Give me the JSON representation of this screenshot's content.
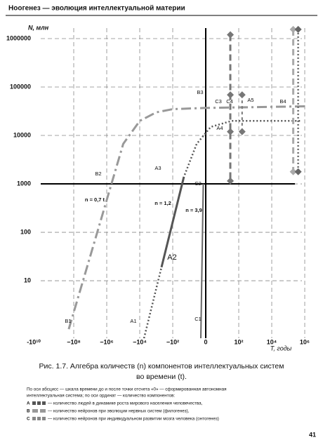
{
  "header": "Ноогенез — эволюция интеллектуальной материи",
  "chart_data": {
    "type": "line",
    "y_label": "N, млн",
    "x_label": "T,  годы",
    "xlim": [
      -10000000000,
      1800000
    ],
    "ylim": [
      0.65,
      1650000
    ],
    "log_y": true,
    "symlog_x": true,
    "grid": true,
    "xticks": [
      {
        "value": -10000000000,
        "label": "-10¹⁰"
      },
      {
        "value": -100000000,
        "label": "−10⁸"
      },
      {
        "value": -1000000,
        "label": "−10⁶"
      },
      {
        "value": -10000,
        "label": "−10⁴"
      },
      {
        "value": -100,
        "label": "−10²"
      },
      0,
      {
        "value": 100,
        "label": "10²"
      },
      {
        "value": 10000,
        "label": "10⁴"
      },
      {
        "value": 1000000,
        "label": "10⁶"
      }
    ],
    "yticks": [
      10,
      100,
      1000,
      10000,
      100000,
      1000000
    ],
    "series": [
      {
        "color": "#999",
        "dash": "14 5 3 5",
        "width": 3,
        "x": [
          -200000000,
          -10000000,
          -1000000,
          -300000,
          -100000,
          -10000,
          -1000,
          -100,
          0,
          1000000,
          1500000
        ],
        "values": [
          1,
          32,
          465,
          1880,
          6700,
          20000,
          30000,
          35000,
          37000,
          40000,
          40000
        ]
      },
      {
        "color": "#555",
        "dash": "2 3",
        "width": 2.5,
        "x": [
          -5500,
          -480,
          -21,
          -0.55,
          0.3,
          37,
          680000
        ],
        "values": [
          0.65,
          19,
          1400,
          6700,
          15000,
          20000,
          20000
        ]
      },
      {
        "color": "#555",
        "dash": "none",
        "width": 3,
        "x": [
          -480,
          -21
        ],
        "values": [
          19,
          1400
        ]
      },
      {
        "color": "#666",
        "dash": "none",
        "width": 2,
        "x": [
          -0.3,
          -0.15
        ],
        "values": [
          0.65,
          1000
        ]
      },
      {
        "color": "#777",
        "dash": "9 5",
        "width": 3,
        "markers": true,
        "x": [
          31,
          31,
          31,
          31
        ],
        "values": [
          1200000,
          69000,
          12000,
          1150
        ]
      },
      {
        "color": "#777",
        "dash": "4 4",
        "width": 2,
        "markers": true,
        "x": [
          160,
          160
        ],
        "values": [
          69000,
          12000
        ]
      },
      {
        "color": "#aaa",
        "dash": "9 5",
        "width": 3,
        "markers": true,
        "x": [
          200000,
          200000
        ],
        "values": [
          1550000,
          1780
        ]
      },
      {
        "color": "#666",
        "dash": "2 3",
        "width": 2.5,
        "markers": true,
        "x": [
          400000,
          400000
        ],
        "values": [
          1550000,
          1780
        ]
      }
    ],
    "annotations": [
      "B1",
      "B2",
      "B3",
      "B4",
      "A1",
      "A2",
      "A3",
      "A4",
      "A5",
      "C1",
      "C2",
      "C3",
      "C4",
      "n = 0,7 t",
      "n = 1,2",
      "n = 3,9"
    ]
  },
  "caption": [
    "Рис. 1.7. Алгебра количеств (n) компонентов интеллектуальных систем",
    "во времени (t)."
  ],
  "notes": {
    "intro": [
      "По оси абсцисс — шкала времени до и после точки отсчета «0» — сформированная автономная",
      "интеллектуальная система; по оси ординат — количество компонентов:"
    ],
    "items": [
      {
        "letter": "А",
        "text": "— количество людей в динамике роста мирового населения человечества,"
      },
      {
        "letter": "В",
        "text": "— количество нейронов при эволюции нервных систем (филогенез),"
      },
      {
        "letter": "С",
        "text": "— количество нейронов при индивидуальном развитии мозга человека (онтогенез)"
      }
    ]
  },
  "page_number": "41"
}
